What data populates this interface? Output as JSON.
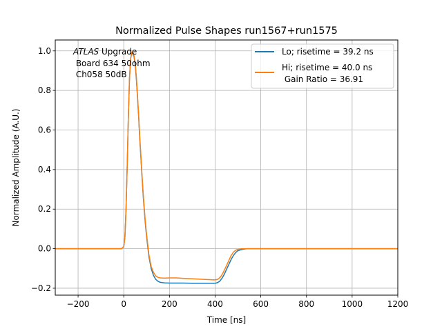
{
  "chart_data": {
    "type": "line",
    "title": "Normalized Pulse Shapes run1567+run1575",
    "xlabel": "Time [ns]",
    "ylabel": "Normalized Amplitude (A.U.)",
    "xlim": [
      -300,
      1200
    ],
    "ylim": [
      -0.235,
      1.055
    ],
    "xticks": [
      -200,
      0,
      200,
      400,
      600,
      800,
      1000,
      1200
    ],
    "xtick_labels": [
      "−200",
      "0",
      "200",
      "400",
      "600",
      "800",
      "1000",
      "1200"
    ],
    "yticks": [
      -0.2,
      0.0,
      0.2,
      0.4,
      0.6,
      0.8,
      1.0
    ],
    "ytick_labels": [
      "−0.2",
      "0.0",
      "0.2",
      "0.4",
      "0.6",
      "0.8",
      "1.0"
    ],
    "grid": true,
    "legend_position": "top-right",
    "annotation": {
      "italic": "ATLAS",
      "line1_rest": " Upgrade",
      "line2": " Board 634 50ohm",
      "line3": " Ch058 50dB"
    },
    "series": [
      {
        "name": "Lo; risetime = 39.2 ns",
        "color": "#1f77b4",
        "x": [
          -300,
          -250,
          -200,
          -150,
          -100,
          -50,
          -10,
          0,
          5,
          10,
          15,
          20,
          25,
          30,
          35,
          40,
          45,
          50,
          55,
          60,
          65,
          70,
          75,
          80,
          85,
          90,
          95,
          100,
          110,
          120,
          130,
          140,
          150,
          160,
          170,
          180,
          200,
          230,
          260,
          300,
          350,
          380,
          400,
          410,
          420,
          430,
          440,
          450,
          460,
          470,
          480,
          490,
          500,
          520,
          540,
          560,
          600,
          700,
          800,
          900,
          1000,
          1100,
          1200
        ],
        "y": [
          0.0,
          0.0,
          0.0,
          0.0,
          0.0,
          0.0,
          0.0,
          0.01,
          0.06,
          0.2,
          0.42,
          0.66,
          0.86,
          0.96,
          0.99,
          0.985,
          0.97,
          0.93,
          0.86,
          0.77,
          0.67,
          0.56,
          0.46,
          0.36,
          0.27,
          0.19,
          0.12,
          0.06,
          -0.04,
          -0.1,
          -0.135,
          -0.155,
          -0.165,
          -0.17,
          -0.172,
          -0.173,
          -0.174,
          -0.174,
          -0.174,
          -0.175,
          -0.175,
          -0.175,
          -0.175,
          -0.172,
          -0.165,
          -0.15,
          -0.13,
          -0.105,
          -0.08,
          -0.055,
          -0.035,
          -0.02,
          -0.01,
          -0.003,
          0.0,
          0.0,
          0.0,
          0.0,
          0.0,
          0.0,
          0.0,
          0.0,
          0.0
        ]
      },
      {
        "name": "Hi; risetime = 40.0 ns\n Gain Ratio = 36.91",
        "color": "#ff7f0e",
        "x": [
          -300,
          -250,
          -200,
          -150,
          -100,
          -50,
          -10,
          0,
          5,
          10,
          15,
          20,
          25,
          30,
          35,
          40,
          45,
          50,
          55,
          60,
          65,
          70,
          75,
          80,
          85,
          90,
          95,
          100,
          110,
          120,
          130,
          140,
          150,
          160,
          170,
          180,
          200,
          230,
          260,
          300,
          350,
          380,
          400,
          410,
          420,
          430,
          440,
          450,
          460,
          470,
          480,
          490,
          500,
          520,
          540,
          560,
          600,
          700,
          800,
          900,
          1000,
          1100,
          1200
        ],
        "y": [
          0.0,
          0.0,
          0.0,
          0.0,
          0.0,
          0.0,
          0.0,
          0.01,
          0.06,
          0.2,
          0.42,
          0.66,
          0.86,
          0.96,
          0.995,
          0.99,
          0.975,
          0.94,
          0.87,
          0.78,
          0.68,
          0.57,
          0.47,
          0.37,
          0.28,
          0.2,
          0.13,
          0.07,
          -0.03,
          -0.09,
          -0.12,
          -0.138,
          -0.145,
          -0.148,
          -0.149,
          -0.149,
          -0.148,
          -0.148,
          -0.15,
          -0.152,
          -0.155,
          -0.157,
          -0.158,
          -0.156,
          -0.148,
          -0.132,
          -0.11,
          -0.085,
          -0.06,
          -0.035,
          -0.018,
          -0.008,
          -0.003,
          0.0,
          0.0,
          0.0,
          0.0,
          0.0,
          0.0,
          0.0,
          0.0,
          0.0,
          0.0
        ]
      }
    ]
  }
}
